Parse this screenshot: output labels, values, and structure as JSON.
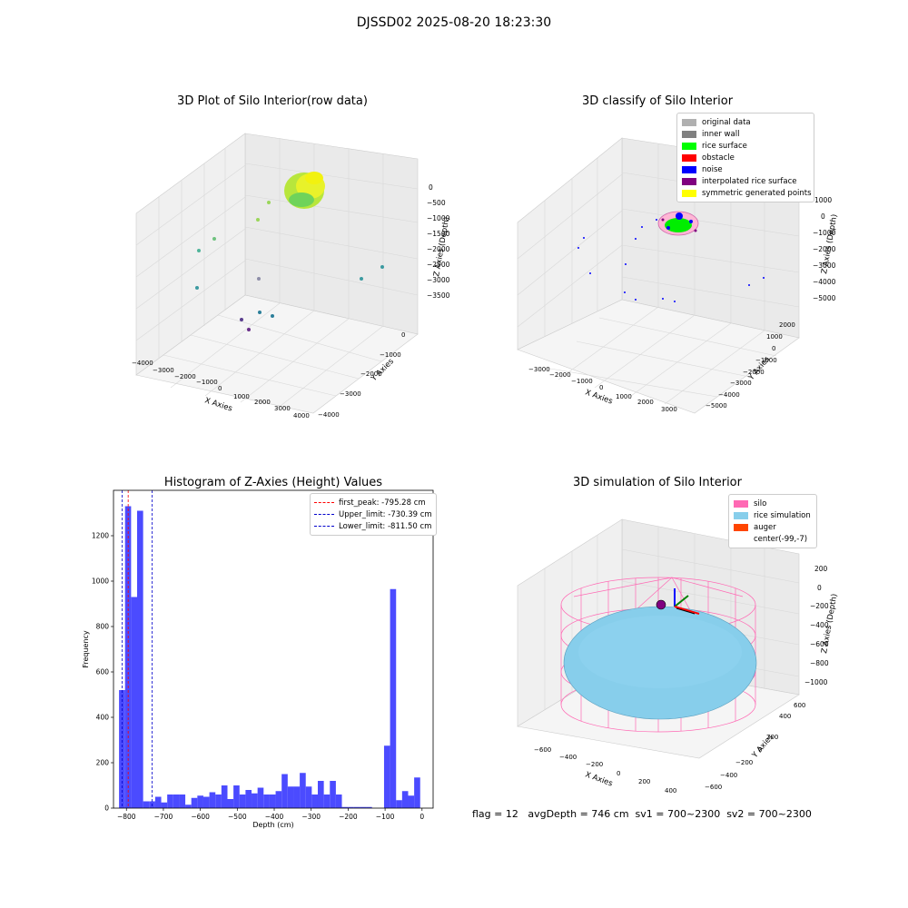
{
  "suptitle": "DJSSD02 2025-08-20 18:23:30",
  "panel1": {
    "title": "3D Plot of Silo Interior(row data)",
    "xlabel": "X Axies",
    "ylabel": "Y Axies",
    "zlabel": "Z Axies (Depth)",
    "xticks": [
      "−4000",
      "−3000",
      "−2000",
      "−1000",
      "0",
      "1000",
      "2000",
      "3000",
      "4000"
    ],
    "yticks": [
      "−4000",
      "−3000",
      "−2000",
      "−1000",
      "0"
    ],
    "zticks": [
      "0",
      "−500",
      "−1000",
      "−1500",
      "−2000",
      "−2500",
      "−3000",
      "−3500"
    ]
  },
  "panel2": {
    "title": "3D classify of Silo Interior",
    "xlabel": "X Axies",
    "ylabel": "Y Axies",
    "zlabel": "Z Axies (Depth)",
    "xticks": [
      "−3000",
      "−2000",
      "−1000",
      "0",
      "1000",
      "2000",
      "3000"
    ],
    "yticks": [
      "−5000",
      "−4000",
      "−3000",
      "−2000",
      "−1000",
      "0",
      "1000",
      "2000"
    ],
    "zticks": [
      "1000",
      "0",
      "−1000",
      "−2000",
      "−3000",
      "−4000",
      "−5000"
    ],
    "legend": [
      {
        "label": "original data",
        "color": "#b0b0b0"
      },
      {
        "label": "inner wall",
        "color": "#808080"
      },
      {
        "label": "rice surface",
        "color": "#00ff00"
      },
      {
        "label": "obstacle",
        "color": "#ff0000"
      },
      {
        "label": "noise",
        "color": "#0000ff"
      },
      {
        "label": "interpolated rice surface",
        "color": "#800080"
      },
      {
        "label": "symmetric generated points",
        "color": "#ffff00"
      }
    ]
  },
  "panel3": {
    "title": "Histogram of Z-Axies (Height) Values",
    "legend": [
      {
        "label": "first_peak: -795.28 cm",
        "color": "#ff0000"
      },
      {
        "label": "Upper_limit: -730.39 cm",
        "color": "#0000cc"
      },
      {
        "label": "Lower_limit: -811.50 cm",
        "color": "#0000cc"
      }
    ]
  },
  "panel4": {
    "title": "3D simulation of Silo Interior",
    "xlabel": "X Axies",
    "ylabel": "Y Axies",
    "zlabel": "Z Axies (Depth)",
    "xticks": [
      "−600",
      "−400",
      "−200",
      "0",
      "200",
      "400"
    ],
    "yticks": [
      "−600",
      "−400",
      "−200",
      "0",
      "200",
      "400",
      "600"
    ],
    "zticks": [
      "200",
      "0",
      "−200",
      "−400",
      "−600",
      "−800",
      "−1000"
    ],
    "legend": [
      {
        "label": "silo",
        "color": "#ff69b4"
      },
      {
        "label": "rice simulation",
        "color": "#87ceeb"
      },
      {
        "label": "auger",
        "color": "#ff4500"
      },
      {
        "label": "center(-99,-7)",
        "color": "#ffffff"
      }
    ]
  },
  "footer": {
    "text": "flag = 12   avgDepth = 746 cm  sv1 = 700~2300  sv2 = 700~2300"
  },
  "chart_data": {
    "type": "bar",
    "title": "Histogram of Z-Axies (Height) Values",
    "xlabel": "Depth (cm)",
    "ylabel": "Frequency",
    "xlim": [
      -835,
      30
    ],
    "ylim": [
      0,
      1400
    ],
    "xticks": [
      -800,
      -700,
      -600,
      -500,
      -400,
      -300,
      -200,
      -100,
      0
    ],
    "yticks": [
      0,
      200,
      400,
      600,
      800,
      1000,
      1200
    ],
    "bin_width": 16.3,
    "bin_start": -820,
    "values": [
      520,
      1330,
      930,
      1310,
      30,
      30,
      50,
      25,
      60,
      60,
      60,
      15,
      45,
      55,
      50,
      70,
      60,
      100,
      40,
      100,
      60,
      80,
      65,
      90,
      60,
      60,
      75,
      150,
      95,
      95,
      155,
      95,
      60,
      120,
      60,
      120,
      60,
      5,
      5,
      5,
      5,
      5,
      0,
      0,
      275,
      965,
      35,
      75,
      55,
      135
    ],
    "lines": [
      {
        "name": "first_peak: -795.28 cm",
        "x": -795.28,
        "color": "#ff0000"
      },
      {
        "name": "Upper_limit: -730.39 cm",
        "x": -730.39,
        "color": "#0000cc"
      },
      {
        "name": "Lower_limit: -811.50 cm",
        "x": -811.5,
        "color": "#0000cc"
      }
    ],
    "bar_color": "#4b4bff"
  }
}
